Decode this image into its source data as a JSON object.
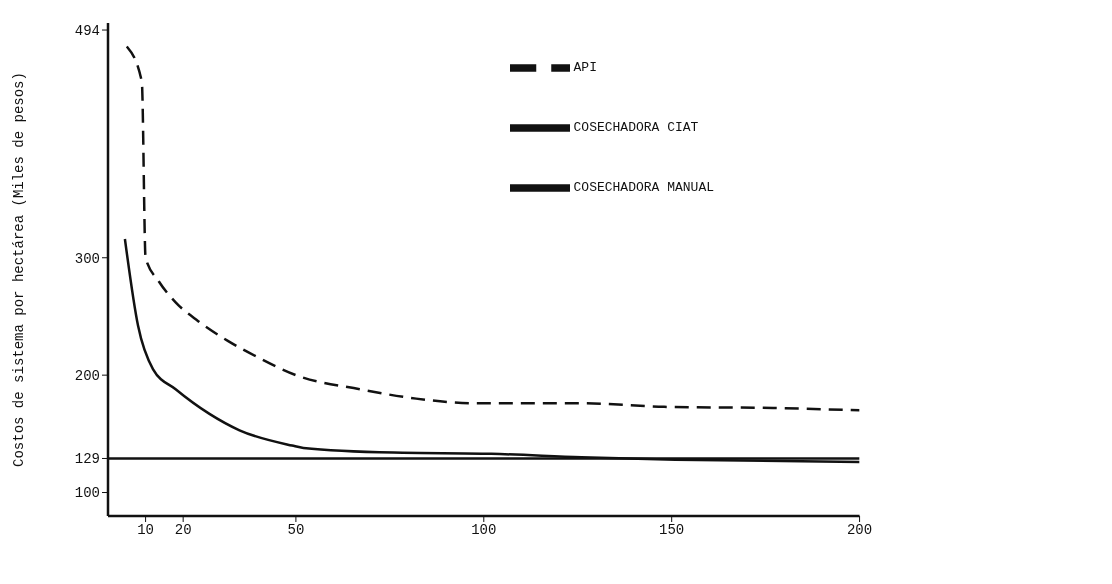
{
  "chart_data": {
    "type": "line",
    "ylabel": "Costos de sistema por hectárea (Miles de pesos)",
    "xlim": [
      0,
      200
    ],
    "xticks": [
      10,
      20,
      50,
      100,
      150,
      200
    ],
    "ylim": [
      80,
      500
    ],
    "yticks": [
      100,
      129,
      200,
      300,
      494
    ],
    "grid": false,
    "legend": "top right",
    "marker": "none",
    "series": [
      {
        "name": "API",
        "color": "#111111",
        "line_style": "dashed",
        "x": [
          5,
          9,
          10,
          13.5,
          18,
          24,
          32,
          40,
          50,
          67,
          82,
          98,
          126,
          148,
          177,
          200
        ],
        "values": [
          480,
          450,
          300,
          280,
          262,
          246,
          229,
          215,
          200,
          188,
          180,
          176,
          176,
          173,
          172,
          170
        ]
      },
      {
        "name": "COSECHADORA CIAT",
        "color": "#111111",
        "line_style": "solid",
        "x": [
          4.5,
          8,
          12,
          18,
          27,
          35,
          49,
          52,
          76,
          102,
          126,
          151,
          200
        ],
        "values": [
          316,
          242,
          205,
          188,
          167,
          153,
          140,
          138,
          134,
          133,
          130,
          128,
          126
        ]
      },
      {
        "name": "COSECHADORA MANUAL",
        "color": "#111111",
        "line_style": "solid",
        "x": [
          0,
          200
        ],
        "values": [
          129,
          129
        ]
      }
    ]
  }
}
